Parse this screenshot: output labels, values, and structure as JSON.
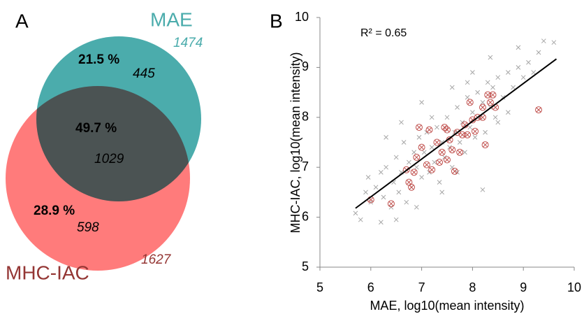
{
  "chart_data": [
    {
      "type": "venn",
      "panel": "A",
      "sets": [
        {
          "name": "MAE",
          "total": 1474,
          "color": "#4bacac"
        },
        {
          "name": "MHC-IAC",
          "total": 1627,
          "color": "#ff5a5a"
        }
      ],
      "regions": [
        {
          "value": 21.5,
          "value_label": "21.5 %",
          "count": 445
        },
        {
          "value": 49.7,
          "value_label": "49.7 %",
          "count": 1029
        },
        {
          "value": 28.9,
          "value_label": "28.9 %",
          "count": 598
        }
      ]
    },
    {
      "type": "scatter",
      "panel": "B",
      "annotation": "R² = 0.65",
      "xlabel": "MAE, log10(mean intensity)",
      "ylabel": "MHC-IAC, log10(mean intensity)",
      "xlim": [
        5,
        10
      ],
      "ylim": [
        5,
        10
      ],
      "xticks": [
        5,
        6,
        7,
        8,
        9,
        10
      ],
      "yticks": [
        5,
        6,
        7,
        8,
        9,
        10
      ],
      "series": [
        {
          "color": "#a6a6a6",
          "marker": "x",
          "x": [
            5.7,
            5.9,
            5.95,
            6.0,
            6.1,
            6.2,
            6.25,
            6.3,
            6.4,
            6.45,
            6.5,
            6.55,
            6.6,
            6.65,
            6.7,
            6.75,
            6.8,
            6.85,
            6.9,
            6.95,
            7.0,
            7.05,
            7.1,
            7.15,
            7.2,
            7.25,
            7.3,
            7.35,
            7.4,
            7.45,
            7.5,
            7.55,
            7.6,
            7.65,
            7.7,
            7.75,
            7.8,
            7.85,
            7.9,
            7.95,
            8.0,
            8.05,
            8.1,
            8.15,
            8.2,
            8.25,
            8.3,
            8.35,
            8.4,
            8.45,
            8.5,
            8.6,
            8.7,
            8.8,
            8.9,
            9.0,
            9.1,
            9.2,
            9.3,
            9.4,
            9.6,
            8.2,
            8.35,
            7.0,
            6.6,
            5.8,
            6.5,
            7.4,
            7.6,
            8.0,
            8.7,
            6.2,
            7.9,
            8.9,
            7.2,
            6.9,
            7.7,
            8.5,
            6.3
          ],
          "y": [
            6.08,
            6.5,
            6.8,
            6.3,
            6.6,
            6.9,
            6.4,
            7.0,
            6.2,
            6.7,
            7.2,
            6.5,
            6.9,
            7.5,
            6.3,
            7.1,
            6.6,
            7.3,
            7.0,
            7.6,
            6.8,
            7.3,
            7.7,
            6.9,
            7.4,
            7.1,
            7.8,
            6.7,
            7.5,
            7.2,
            8.0,
            7.4,
            7.0,
            7.7,
            8.2,
            7.5,
            7.9,
            7.3,
            8.4,
            7.8,
            8.1,
            7.6,
            8.5,
            8.0,
            8.3,
            7.7,
            8.7,
            8.2,
            8.6,
            8.0,
            8.8,
            8.4,
            8.9,
            8.6,
            9.0,
            8.8,
            9.1,
            8.9,
            9.3,
            9.53,
            9.5,
            6.55,
            9.2,
            8.3,
            7.9,
            5.95,
            5.95,
            6.5,
            8.6,
            8.9,
            8.1,
            5.9,
            8.7,
            9.4,
            8.0,
            6.2,
            6.9,
            7.9,
            7.6
          ]
        },
        {
          "color": "#c0504d",
          "marker": "circle-x",
          "x": [
            6.0,
            6.4,
            6.75,
            6.8,
            6.85,
            6.9,
            7.0,
            6.95,
            7.1,
            7.2,
            7.3,
            7.35,
            7.4,
            7.45,
            7.5,
            7.55,
            7.6,
            7.65,
            7.7,
            7.75,
            7.8,
            7.85,
            7.9,
            8.0,
            8.05,
            8.1,
            8.2,
            8.25,
            8.3,
            8.35,
            8.4,
            8.45,
            9.3,
            7.5,
            7.15,
            6.7,
            7.95,
            8.2
          ],
          "y": [
            6.35,
            6.27,
            6.7,
            6.6,
            6.9,
            7.2,
            7.4,
            7.8,
            7.05,
            6.95,
            7.5,
            7.1,
            7.3,
            7.8,
            7.15,
            7.55,
            7.35,
            6.92,
            7.7,
            7.3,
            7.65,
            7.85,
            7.65,
            7.95,
            7.72,
            8.0,
            8.2,
            7.45,
            8.45,
            8.3,
            8.45,
            8.2,
            8.15,
            7.75,
            7.75,
            6.95,
            8.3,
            8.0
          ]
        }
      ],
      "fit": {
        "x": [
          5.7,
          9.65
        ],
        "y": [
          6.18,
          9.17
        ]
      }
    }
  ]
}
